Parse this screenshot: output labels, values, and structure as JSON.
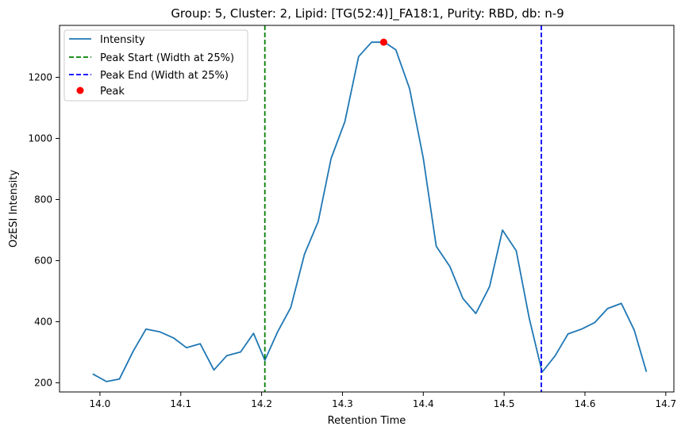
{
  "chart_data": {
    "type": "line",
    "title": "Group: 5, Cluster: 2, Lipid: [TG(52:4)]_FA18:1, Purity: RBD, db: n-9",
    "xlabel": "Retention Time",
    "ylabel": "OzESI Intensity",
    "xlim": [
      13.95,
      14.71
    ],
    "ylim": [
      170,
      1370
    ],
    "xticks": [
      "14.0",
      "14.1",
      "14.2",
      "14.3",
      "14.4",
      "14.5",
      "14.6",
      "14.7"
    ],
    "yticks": [
      "200",
      "400",
      "600",
      "800",
      "1000",
      "1200"
    ],
    "grid": false,
    "legend_position": "top-left",
    "series": [
      {
        "name": "Intensity",
        "color": "#1f77b4",
        "x": [
          13.991,
          14.008,
          14.024,
          14.041,
          14.057,
          14.074,
          14.091,
          14.107,
          14.124,
          14.141,
          14.157,
          14.174,
          14.19,
          14.204,
          14.22,
          14.236,
          14.253,
          14.27,
          14.286,
          14.303,
          14.32,
          14.336,
          14.352,
          14.366,
          14.383,
          14.4,
          14.416,
          14.433,
          14.449,
          14.465,
          14.482,
          14.498,
          14.515,
          14.531,
          14.547,
          14.563,
          14.579,
          14.596,
          14.612,
          14.628,
          14.645,
          14.661,
          14.676
        ],
        "y": [
          229,
          204,
          212,
          303,
          376,
          367,
          347,
          315,
          328,
          242,
          289,
          301,
          362,
          274,
          368,
          446,
          621,
          728,
          935,
          1055,
          1268,
          1315,
          1315,
          1290,
          1163,
          935,
          647,
          580,
          476,
          427,
          515,
          700,
          632,
          412,
          235,
          288,
          360,
          376,
          397,
          443,
          460,
          372,
          236
        ]
      }
    ],
    "vlines": [
      {
        "name": "Peak Start (Width at 25%)",
        "x": 14.204,
        "color": "#008000",
        "style": "dashed"
      },
      {
        "name": "Peak End (Width at 25%)",
        "x": 14.546,
        "color": "#0000ff",
        "style": "dashed"
      }
    ],
    "peak": {
      "name": "Peak",
      "x": 14.351,
      "y": 1315,
      "color": "#ff0000"
    }
  }
}
